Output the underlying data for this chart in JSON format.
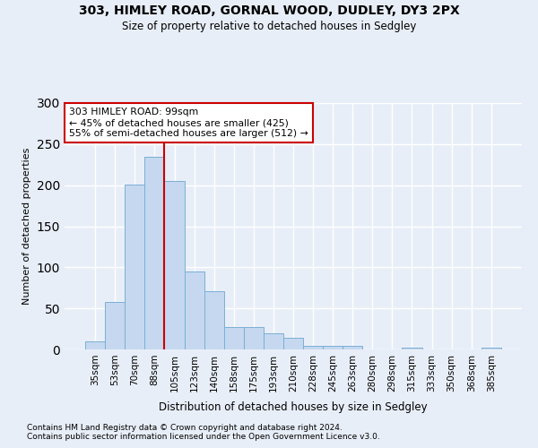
{
  "title_line1": "303, HIMLEY ROAD, GORNAL WOOD, DUDLEY, DY3 2PX",
  "title_line2": "Size of property relative to detached houses in Sedgley",
  "xlabel": "Distribution of detached houses by size in Sedgley",
  "ylabel": "Number of detached properties",
  "categories": [
    "35sqm",
    "53sqm",
    "70sqm",
    "88sqm",
    "105sqm",
    "123sqm",
    "140sqm",
    "158sqm",
    "175sqm",
    "193sqm",
    "210sqm",
    "228sqm",
    "245sqm",
    "263sqm",
    "280sqm",
    "298sqm",
    "315sqm",
    "333sqm",
    "350sqm",
    "368sqm",
    "385sqm"
  ],
  "values": [
    10,
    58,
    201,
    235,
    205,
    95,
    71,
    27,
    27,
    20,
    14,
    4,
    4,
    4,
    0,
    0,
    2,
    0,
    0,
    0,
    2
  ],
  "bar_color": "#c5d8f0",
  "bar_edge_color": "#7aafd4",
  "bg_color": "#e8eef8",
  "grid_color": "#ffffff",
  "property_line_label": "303 HIMLEY ROAD: 99sqm",
  "annotation_line1": "← 45% of detached houses are smaller (425)",
  "annotation_line2": "55% of semi-detached houses are larger (512) →",
  "annotation_box_color": "#ffffff",
  "annotation_box_edge": "#cc0000",
  "red_line_color": "#cc0000",
  "red_line_x": 3.5,
  "ylim": [
    0,
    300
  ],
  "yticks": [
    0,
    50,
    100,
    150,
    200,
    250,
    300
  ],
  "footnote1": "Contains HM Land Registry data © Crown copyright and database right 2024.",
  "footnote2": "Contains public sector information licensed under the Open Government Licence v3.0."
}
